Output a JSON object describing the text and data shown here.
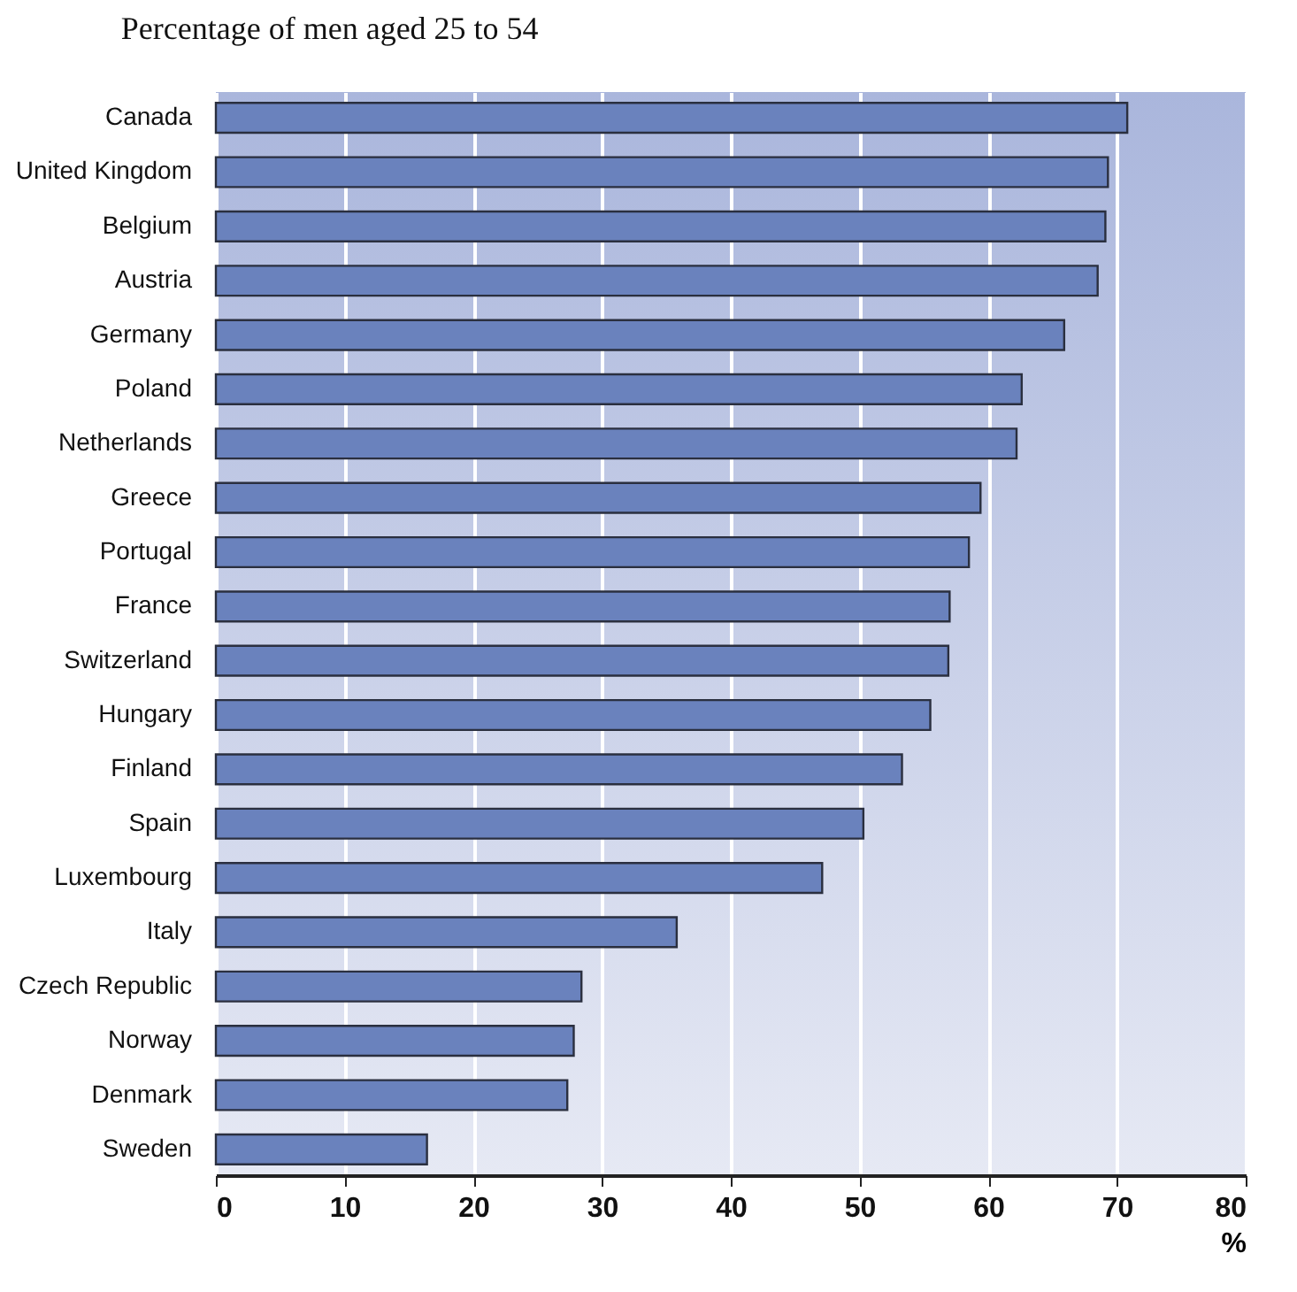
{
  "chart_data": {
    "type": "bar",
    "orientation": "horizontal",
    "title": "Percentage of men aged 25 to 54",
    "xlabel": "%",
    "categories": [
      "Canada",
      "United Kingdom",
      "Belgium",
      "Austria",
      "Germany",
      "Poland",
      "Netherlands",
      "Greece",
      "Portugal",
      "France",
      "Switzerland",
      "Hungary",
      "Finland",
      "Spain",
      "Luxembourg",
      "Italy",
      "Czech Republic",
      "Norway",
      "Denmark",
      "Sweden"
    ],
    "values": [
      70.8,
      69.3,
      69.1,
      68.5,
      65.9,
      62.6,
      62.2,
      59.4,
      58.5,
      57.0,
      56.9,
      55.5,
      53.3,
      50.3,
      47.1,
      35.8,
      28.4,
      27.8,
      27.3,
      16.4
    ],
    "color": "#6a82bd",
    "xlim": [
      0,
      80
    ],
    "xticks": [
      0,
      10,
      20,
      30,
      40,
      50,
      60,
      70,
      80
    ],
    "grid": "x"
  }
}
